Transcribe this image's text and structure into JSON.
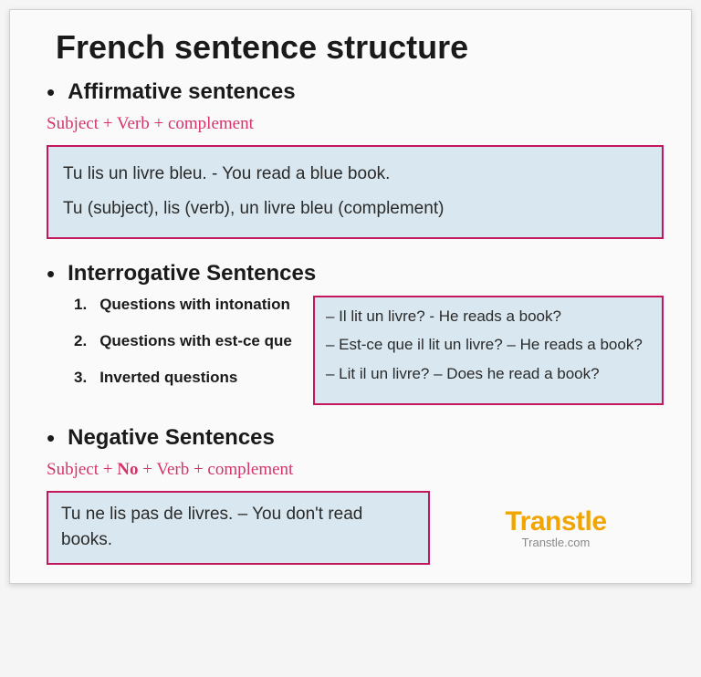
{
  "title": "French sentence structure",
  "colors": {
    "box_border": "#c2185b",
    "box_bg": "#d9e8f0",
    "formula_text": "#d6336c",
    "brand_color": "#f0a500",
    "page_bg": "#fafafa"
  },
  "sections": {
    "affirmative": {
      "heading": "Affirmative sentences",
      "formula": "Subject + Verb + complement",
      "example_line1": "Tu lis un livre bleu. - You read a blue book.",
      "example_line2": "Tu (subject), lis (verb), un livre bleu (complement)"
    },
    "interrogative": {
      "heading": "Interrogative Sentences",
      "items": [
        {
          "num": "1.",
          "label": "Questions with intonation"
        },
        {
          "num": "2.",
          "label": "Questions with est-ce que"
        },
        {
          "num": "3.",
          "label": "Inverted questions"
        }
      ],
      "examples": [
        "–  Il lit un livre?  - He reads a book?",
        "– Est-ce que il lit un livre? – He reads a book?",
        "–  Lit il un livre? – Does he read a book?"
      ]
    },
    "negative": {
      "heading": "Negative Sentences",
      "formula_pre": "Subject + ",
      "formula_bold": "No",
      "formula_post": " + Verb + complement",
      "example": "Tu ne lis pas de livres. – You don't read books."
    }
  },
  "brand": {
    "name": "Transtle",
    "url": "Transtle.com"
  }
}
